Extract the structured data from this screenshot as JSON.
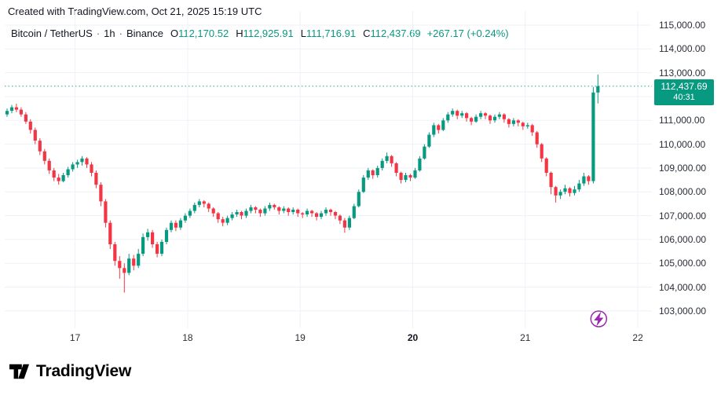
{
  "header": {
    "attribution": "Created with TradingView.com, Oct 21, 2025 15:19 UTC"
  },
  "legend": {
    "symbol": "Bitcoin / TetherUS",
    "separator": "·",
    "interval": "1h",
    "exchange": "Binance",
    "ohlc": {
      "o_label": "O",
      "o": "112,170.52",
      "h_label": "H",
      "h": "112,925.91",
      "l_label": "L",
      "l": "111,716.91",
      "c_label": "C",
      "c": "112,437.69"
    },
    "change": "+267.17 (+0.24%)"
  },
  "price_badge": {
    "price": "112,437.69",
    "countdown": "40:31"
  },
  "footer": {
    "logo_text": "TradingView"
  },
  "colors": {
    "up": "#089981",
    "down": "#f23645",
    "grid": "#eef1f7",
    "text": "#131722",
    "axis_text": "#2a2e39",
    "badge_bg": "#089981",
    "marker": "#9c27b0",
    "background": "#ffffff"
  },
  "chart_data": {
    "type": "candlestick",
    "title": "Bitcoin / TetherUS",
    "interval": "1h",
    "exchange": "Binance",
    "timezone": "UTC",
    "ylim": [
      103000,
      115000
    ],
    "current_candle": {
      "open": 112170.52,
      "high": 112925.91,
      "low": 111716.91,
      "close": 112437.69,
      "change": 267.17,
      "change_pct": 0.24,
      "countdown": "40:31"
    },
    "price_ticks": [
      {
        "label": "115,000.00",
        "value": 115000
      },
      {
        "label": "114,000.00",
        "value": 114000
      },
      {
        "label": "113,000.00",
        "value": 113000
      },
      {
        "label": "112,000.00",
        "value": 112000
      },
      {
        "label": "111,000.00",
        "value": 111000
      },
      {
        "label": "110,000.00",
        "value": 110000
      },
      {
        "label": "109,000.00",
        "value": 109000
      },
      {
        "label": "108,000.00",
        "value": 108000
      },
      {
        "label": "107,000.00",
        "value": 107000
      },
      {
        "label": "106,000.00",
        "value": 106000
      },
      {
        "label": "105,000.00",
        "value": 105000
      },
      {
        "label": "104,000.00",
        "value": 104000
      },
      {
        "label": "103,000.00",
        "value": 103000
      }
    ],
    "time_ticks": [
      {
        "label": "17",
        "index": 15,
        "bold": false
      },
      {
        "label": "18",
        "index": 39,
        "bold": false
      },
      {
        "label": "19",
        "index": 63,
        "bold": false
      },
      {
        "label": "20",
        "index": 87,
        "bold": true
      },
      {
        "label": "21",
        "index": 111,
        "bold": false
      },
      {
        "label": "22",
        "index": 135,
        "bold": false
      }
    ],
    "candles": [
      [
        111250,
        111500,
        111150,
        111400
      ],
      [
        111400,
        111650,
        111300,
        111550
      ],
      [
        111550,
        111700,
        111350,
        111450
      ],
      [
        111450,
        111550,
        111150,
        111250
      ],
      [
        111250,
        111350,
        110850,
        110950
      ],
      [
        110950,
        111050,
        110450,
        110600
      ],
      [
        110600,
        110700,
        110000,
        110150
      ],
      [
        110150,
        110250,
        109550,
        109700
      ],
      [
        109700,
        109800,
        109150,
        109300
      ],
      [
        109300,
        109400,
        108750,
        108900
      ],
      [
        108900,
        109000,
        108450,
        108600
      ],
      [
        108600,
        108750,
        108300,
        108450
      ],
      [
        108450,
        108800,
        108400,
        108700
      ],
      [
        108700,
        109050,
        108600,
        108950
      ],
      [
        108950,
        109250,
        108850,
        109150
      ],
      [
        109150,
        109350,
        109000,
        109250
      ],
      [
        109250,
        109500,
        109100,
        109400
      ],
      [
        109400,
        109450,
        109000,
        109150
      ],
      [
        109150,
        109250,
        108650,
        108800
      ],
      [
        108800,
        108900,
        108150,
        108300
      ],
      [
        108300,
        108400,
        107400,
        107600
      ],
      [
        107600,
        107700,
        106500,
        106700
      ],
      [
        106700,
        106800,
        105600,
        105800
      ],
      [
        105800,
        105900,
        104900,
        105100
      ],
      [
        105100,
        105300,
        104350,
        104800
      ],
      [
        104800,
        105000,
        103772,
        104600
      ],
      [
        104600,
        105400,
        104500,
        105200
      ],
      [
        105200,
        105350,
        104700,
        104900
      ],
      [
        104900,
        105600,
        104800,
        105400
      ],
      [
        105400,
        106250,
        105300,
        106100
      ],
      [
        106100,
        106450,
        105950,
        106300
      ],
      [
        106300,
        106400,
        105650,
        105800
      ],
      [
        105800,
        105900,
        105250,
        105400
      ],
      [
        105400,
        106000,
        105300,
        105900
      ],
      [
        105900,
        106500,
        105800,
        106400
      ],
      [
        106400,
        106800,
        106300,
        106700
      ],
      [
        106700,
        106800,
        106350,
        106500
      ],
      [
        106500,
        106900,
        106400,
        106800
      ],
      [
        106800,
        107100,
        106700,
        107000
      ],
      [
        107000,
        107300,
        106900,
        107200
      ],
      [
        107200,
        107550,
        107100,
        107450
      ],
      [
        107450,
        107700,
        107350,
        107600
      ],
      [
        107600,
        107650,
        107350,
        107500
      ],
      [
        107500,
        107550,
        107150,
        107300
      ],
      [
        107300,
        107350,
        106950,
        107100
      ],
      [
        107100,
        107150,
        106700,
        106850
      ],
      [
        106850,
        106950,
        106550,
        106700
      ],
      [
        106700,
        107000,
        106600,
        106900
      ],
      [
        106900,
        107150,
        106800,
        107050
      ],
      [
        107050,
        107250,
        106950,
        107150
      ],
      [
        107150,
        107200,
        106850,
        107000
      ],
      [
        107000,
        107300,
        106900,
        107200
      ],
      [
        107200,
        107450,
        107100,
        107350
      ],
      [
        107350,
        107400,
        107100,
        107250
      ],
      [
        107250,
        107300,
        106950,
        107100
      ],
      [
        107100,
        107400,
        107000,
        107300
      ],
      [
        107300,
        107550,
        107200,
        107450
      ],
      [
        107450,
        107500,
        107250,
        107350
      ],
      [
        107350,
        107400,
        107050,
        107200
      ],
      [
        107200,
        107400,
        107100,
        107300
      ],
      [
        107300,
        107350,
        107000,
        107150
      ],
      [
        107150,
        107350,
        107050,
        107250
      ],
      [
        107250,
        107300,
        106950,
        107100
      ],
      [
        107100,
        107150,
        106900,
        107050
      ],
      [
        107050,
        107300,
        106950,
        107200
      ],
      [
        107200,
        107250,
        106950,
        107100
      ],
      [
        107100,
        107150,
        106800,
        106950
      ],
      [
        106950,
        107200,
        106850,
        107100
      ],
      [
        107100,
        107350,
        107000,
        107250
      ],
      [
        107250,
        107300,
        107000,
        107150
      ],
      [
        107150,
        107200,
        106850,
        107000
      ],
      [
        107000,
        107050,
        106650,
        106800
      ],
      [
        106800,
        106900,
        106280,
        106500
      ],
      [
        106500,
        107000,
        106400,
        106900
      ],
      [
        106900,
        107500,
        106850,
        107400
      ],
      [
        107400,
        108100,
        107350,
        108000
      ],
      [
        108000,
        108700,
        107950,
        108600
      ],
      [
        108600,
        109000,
        108500,
        108900
      ],
      [
        108900,
        108950,
        108550,
        108700
      ],
      [
        108700,
        109100,
        108600,
        109000
      ],
      [
        109000,
        109400,
        108900,
        109300
      ],
      [
        109300,
        109650,
        109200,
        109500
      ],
      [
        109500,
        109550,
        109050,
        109200
      ],
      [
        109200,
        109250,
        108650,
        108800
      ],
      [
        108800,
        108850,
        108350,
        108500
      ],
      [
        108500,
        108800,
        108400,
        108700
      ],
      [
        108700,
        108750,
        108450,
        108600
      ],
      [
        108600,
        109000,
        108550,
        108900
      ],
      [
        108900,
        109500,
        108850,
        109400
      ],
      [
        109400,
        110000,
        109350,
        109900
      ],
      [
        109900,
        110500,
        109850,
        110400
      ],
      [
        110400,
        110900,
        110300,
        110800
      ],
      [
        110800,
        110850,
        110450,
        110600
      ],
      [
        110600,
        111100,
        110550,
        111000
      ],
      [
        111000,
        111350,
        110900,
        111250
      ],
      [
        111250,
        111500,
        111150,
        111400
      ],
      [
        111400,
        111450,
        111050,
        111200
      ],
      [
        111200,
        111400,
        111100,
        111300
      ],
      [
        111300,
        111350,
        110950,
        111100
      ],
      [
        111100,
        111150,
        110800,
        110950
      ],
      [
        110950,
        111250,
        110900,
        111150
      ],
      [
        111150,
        111400,
        111050,
        111300
      ],
      [
        111300,
        111350,
        111050,
        111200
      ],
      [
        111200,
        111250,
        110850,
        111000
      ],
      [
        111000,
        111250,
        110900,
        111150
      ],
      [
        111150,
        111350,
        111050,
        111250
      ],
      [
        111250,
        111300,
        110900,
        111050
      ],
      [
        111050,
        111100,
        110700,
        110850
      ],
      [
        110850,
        111100,
        110750,
        111000
      ],
      [
        111000,
        111050,
        110750,
        110900
      ],
      [
        110900,
        110950,
        110600,
        110750
      ],
      [
        110750,
        110900,
        110650,
        110800
      ],
      [
        110800,
        110850,
        110350,
        110500
      ],
      [
        110500,
        110550,
        109850,
        110000
      ],
      [
        110000,
        110050,
        109250,
        109400
      ],
      [
        109400,
        109450,
        108650,
        108800
      ],
      [
        108800,
        108850,
        107900,
        108200
      ],
      [
        108200,
        108250,
        107550,
        107850
      ],
      [
        107850,
        108100,
        107700,
        108000
      ],
      [
        108000,
        108300,
        107900,
        108150
      ],
      [
        108150,
        108200,
        107800,
        107950
      ],
      [
        107950,
        108250,
        107850,
        108100
      ],
      [
        108100,
        108500,
        108000,
        108350
      ],
      [
        108350,
        108800,
        108250,
        108650
      ],
      [
        108650,
        108700,
        108300,
        108450
      ],
      [
        108450,
        112400,
        108350,
        112170
      ],
      [
        112170.52,
        112925.91,
        111716.91,
        112437.69
      ]
    ]
  }
}
